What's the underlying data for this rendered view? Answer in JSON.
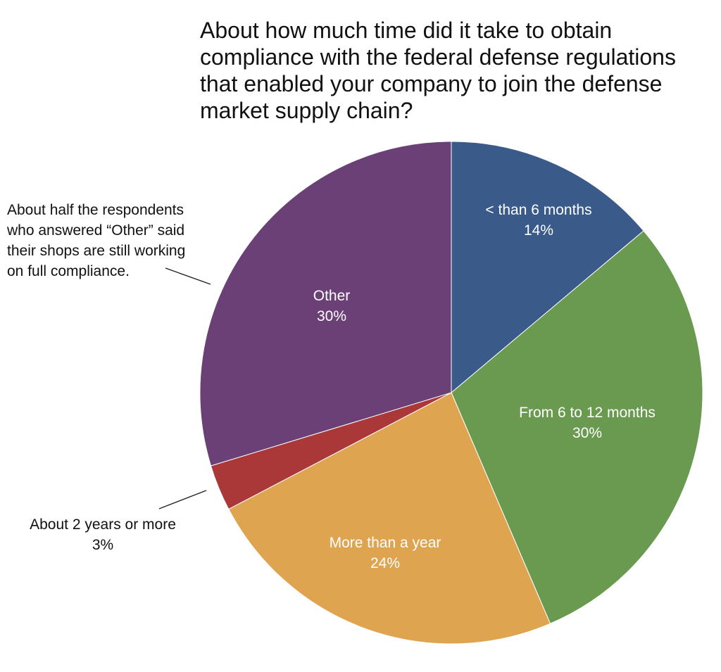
{
  "chart_data": {
    "type": "pie",
    "title_lines": [
      "About how much time did it take to obtain",
      "compliance with the federal defense regulations",
      "that enabled your company to join the defense",
      "market supply chain?"
    ],
    "slices": [
      {
        "label": "< than 6 months",
        "value": 14,
        "display": "14%",
        "color": "#3a5a8a"
      },
      {
        "label": "From 6 to 12 months",
        "value": 30,
        "display": "30%",
        "color": "#6a9a50"
      },
      {
        "label": "More than a year",
        "value": 24,
        "display": "24%",
        "color": "#dea450"
      },
      {
        "label": "About 2 years or more",
        "value": 3,
        "display": "3%",
        "color": "#aa3838"
      },
      {
        "label": "Other",
        "value": 30,
        "display": "30%",
        "color": "#6a4076"
      }
    ],
    "annotation_lines": [
      "About half the respondents",
      "who answered “Other” said",
      "their shops are still working",
      "on full compliance."
    ]
  }
}
